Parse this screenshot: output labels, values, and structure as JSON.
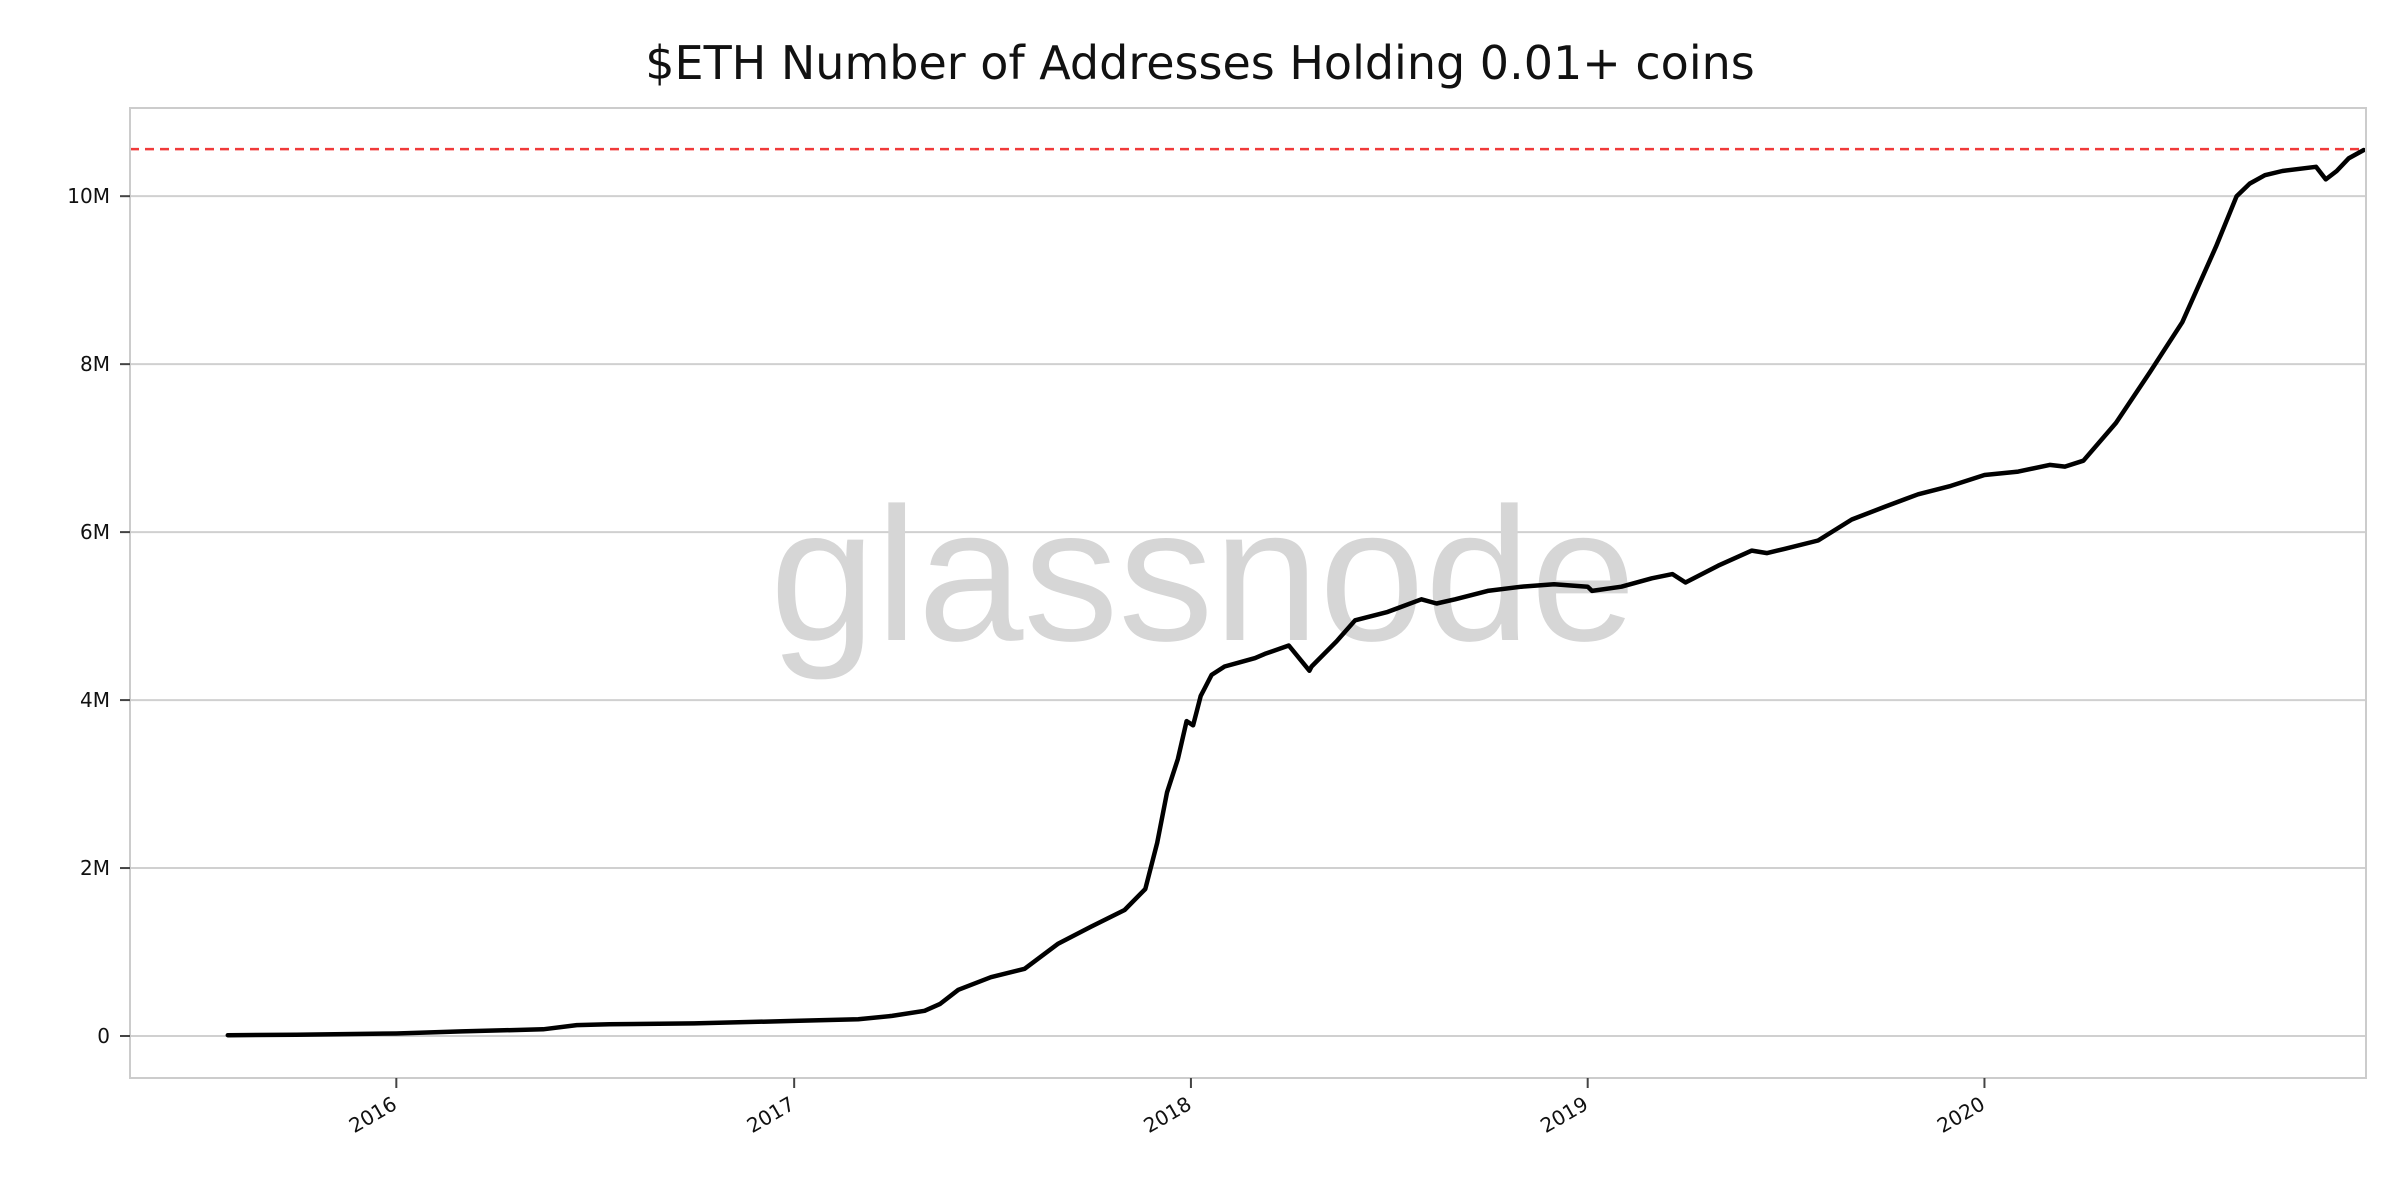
{
  "chart_data": {
    "type": "line",
    "title": "$ETH Number of Addresses Holding 0.01+ coins",
    "xlabel": "",
    "ylabel": "",
    "xlim": [
      "2015-05-01",
      "2020-12-17"
    ],
    "ylim": [
      -500000,
      11050000
    ],
    "x_ticks": [
      "2016-01-01",
      "2017-01-01",
      "2018-01-01",
      "2019-01-01",
      "2020-01-01"
    ],
    "x_tick_labels": [
      "2016",
      "2017",
      "2018",
      "2019",
      "2020"
    ],
    "y_ticks": [
      0,
      2000000,
      4000000,
      6000000,
      8000000,
      10000000
    ],
    "y_tick_labels": [
      "0",
      "2M",
      "4M",
      "6M",
      "8M",
      "10M"
    ],
    "grid": "horizontal",
    "line_color": "#000000",
    "reference_line": {
      "value": 10560000,
      "color": "#f03a3a",
      "style": "dashed"
    },
    "watermark": "glassnode",
    "series": [
      {
        "x": [
          "2015-07-30",
          "2015-10-01",
          "2016-01-01",
          "2016-03-01",
          "2016-05-15",
          "2016-06-15",
          "2016-07-15",
          "2016-10-01",
          "2017-01-01",
          "2017-03-01",
          "2017-04-01",
          "2017-05-01",
          "2017-05-15",
          "2017-06-01",
          "2017-07-01",
          "2017-08-01",
          "2017-09-01",
          "2017-10-01",
          "2017-11-01",
          "2017-11-20",
          "2017-12-01",
          "2017-12-10",
          "2017-12-20",
          "2017-12-28",
          "2018-01-03",
          "2018-01-06",
          "2018-01-10",
          "2018-01-14",
          "2018-01-20",
          "2018-02-01",
          "2018-02-15",
          "2018-03-01",
          "2018-03-10",
          "2018-04-01",
          "2018-04-20",
          "2018-04-22",
          "2018-05-15",
          "2018-06-01",
          "2018-07-01",
          "2018-08-01",
          "2018-08-15",
          "2018-09-01",
          "2018-10-01",
          "2018-11-01",
          "2018-12-01",
          "2019-01-01",
          "2019-01-05",
          "2019-02-01",
          "2019-03-01",
          "2019-03-20",
          "2019-04-01",
          "2019-05-01",
          "2019-06-01",
          "2019-06-15",
          "2019-07-01",
          "2019-08-01",
          "2019-09-01",
          "2019-10-01",
          "2019-11-01",
          "2019-12-01",
          "2020-01-01",
          "2020-02-01",
          "2020-03-01",
          "2020-03-15",
          "2020-04-01",
          "2020-05-01",
          "2020-06-01",
          "2020-07-01",
          "2020-08-01",
          "2020-08-20",
          "2020-09-01",
          "2020-09-15",
          "2020-10-01",
          "2020-11-01",
          "2020-11-10",
          "2020-11-20",
          "2020-12-01",
          "2020-12-15"
        ],
        "values": [
          10000,
          15000,
          30000,
          55000,
          80000,
          130000,
          140000,
          150000,
          180000,
          200000,
          240000,
          300000,
          380000,
          550000,
          700000,
          800000,
          1100000,
          1300000,
          1500000,
          1750000,
          2300000,
          2900000,
          3300000,
          3750000,
          3700000,
          3850000,
          4050000,
          4150000,
          4300000,
          4400000,
          4450000,
          4500000,
          4550000,
          4650000,
          4350000,
          4400000,
          4700000,
          4950000,
          5050000,
          5200000,
          5150000,
          5200000,
          5300000,
          5350000,
          5380000,
          5350000,
          5300000,
          5350000,
          5450000,
          5500000,
          5400000,
          5600000,
          5780000,
          5750000,
          5800000,
          5900000,
          6150000,
          6300000,
          6450000,
          6550000,
          6680000,
          6720000,
          6800000,
          6780000,
          6850000,
          7300000,
          7900000,
          8500000,
          9400000,
          10000000,
          10150000,
          10250000,
          10300000,
          10350000,
          10200000,
          10300000,
          10450000,
          10550000
        ]
      }
    ]
  }
}
